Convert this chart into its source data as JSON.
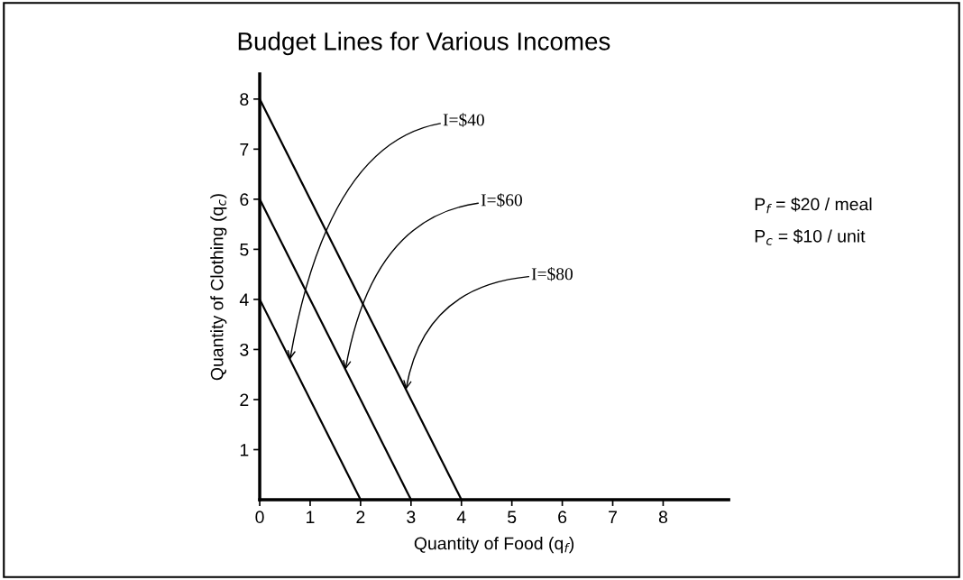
{
  "chart_data": {
    "type": "line",
    "title": "Budget Lines for Various Incomes",
    "xlabel": "Quantity of Food (q$_{f}$)",
    "ylabel": "Quantity of Clothing (q$_{c}$)",
    "series": [
      {
        "x": [
          0,
          2
        ],
        "values": [
          4,
          0
        ],
        "color": "#000000"
      },
      {
        "x": [
          0,
          3
        ],
        "values": [
          6,
          0
        ],
        "color": "#000000"
      },
      {
        "x": [
          0,
          4
        ],
        "values": [
          8,
          0
        ],
        "color": "#000000"
      }
    ],
    "xlim": [
      0,
      9.3
    ],
    "ylim": [
      0,
      8.5
    ],
    "xticks": [
      {
        "value": 0,
        "label": "0"
      },
      1,
      2,
      3,
      4,
      5,
      6,
      7,
      8
    ],
    "yticks": [
      1,
      2,
      3,
      4,
      5,
      6,
      7,
      8
    ],
    "grid": false,
    "legend": false,
    "annotations": [
      {
        "text": "I=$40",
        "x": 0.6,
        "y": 2.8
      },
      {
        "text": "I=$60",
        "x": 1.7,
        "y": 2.6
      },
      {
        "text": "I=$80",
        "x": 2.9,
        "y": 2.2
      },
      "P$_{f}$ = $20 / meal",
      "P$_{c}$ = $10 / unit"
    ]
  }
}
